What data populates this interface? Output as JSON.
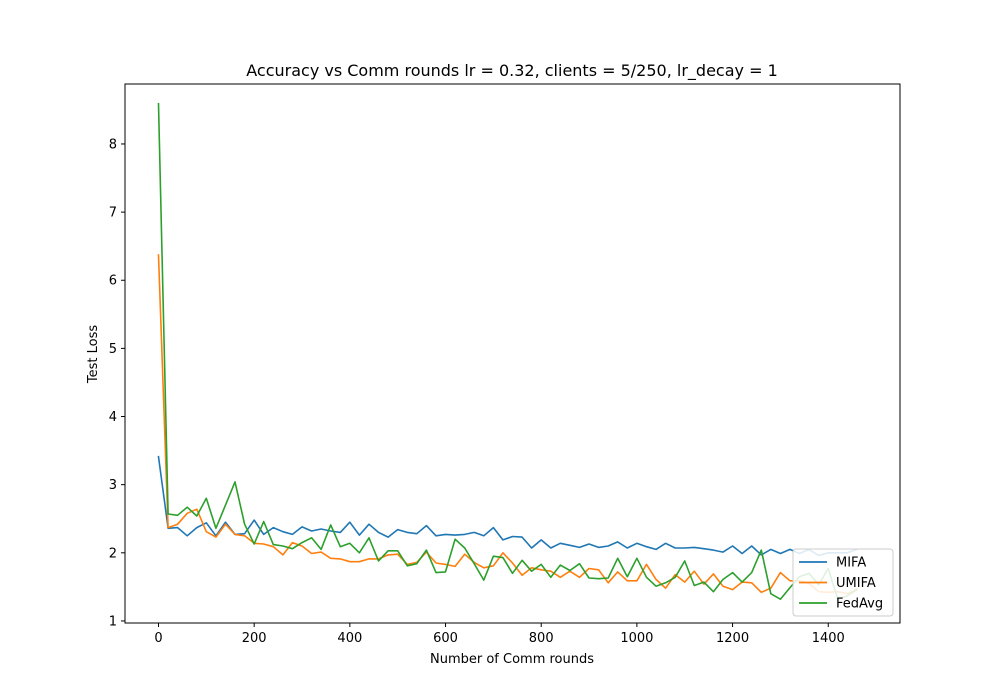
{
  "chart_data": {
    "type": "line",
    "title": "Accuracy vs Comm rounds lr = 0.32, clients = 5/250, lr_decay = 1",
    "xlabel": "Number of Comm rounds",
    "ylabel": "Test Loss",
    "xlim": [
      -70,
      1550
    ],
    "ylim": [
      0.97,
      8.88
    ],
    "xticks": [
      0,
      200,
      400,
      600,
      800,
      1000,
      1200,
      1400
    ],
    "yticks": [
      1,
      2,
      3,
      4,
      5,
      6,
      7,
      8
    ],
    "grid": false,
    "legend_position": "lower right",
    "x": [
      0,
      20,
      40,
      60,
      80,
      100,
      120,
      140,
      160,
      180,
      200,
      220,
      240,
      260,
      280,
      300,
      320,
      340,
      360,
      380,
      400,
      420,
      440,
      460,
      480,
      500,
      520,
      540,
      560,
      580,
      600,
      620,
      640,
      660,
      680,
      700,
      720,
      740,
      760,
      780,
      800,
      820,
      840,
      860,
      880,
      900,
      920,
      940,
      960,
      980,
      1000,
      1020,
      1040,
      1060,
      1080,
      1100,
      1120,
      1140,
      1160,
      1180,
      1200,
      1220,
      1240,
      1260,
      1280,
      1300,
      1320,
      1340,
      1360,
      1380,
      1400,
      1420,
      1440,
      1460
    ],
    "series": [
      {
        "name": "MIFA",
        "color": "#1f77b4",
        "values": [
          3.41,
          2.36,
          2.37,
          2.25,
          2.37,
          2.44,
          2.25,
          2.45,
          2.27,
          2.28,
          2.48,
          2.27,
          2.37,
          2.31,
          2.27,
          2.38,
          2.32,
          2.35,
          2.32,
          2.3,
          2.45,
          2.26,
          2.42,
          2.3,
          2.23,
          2.34,
          2.3,
          2.28,
          2.4,
          2.25,
          2.27,
          2.26,
          2.27,
          2.3,
          2.25,
          2.37,
          2.19,
          2.24,
          2.23,
          2.07,
          2.19,
          2.07,
          2.14,
          2.11,
          2.08,
          2.13,
          2.08,
          2.1,
          2.16,
          2.07,
          2.14,
          2.09,
          2.05,
          2.14,
          2.07,
          2.07,
          2.08,
          2.06,
          2.04,
          2.01,
          2.1,
          1.99,
          2.1,
          1.97,
          2.05,
          1.99,
          2.05,
          1.99,
          2.05,
          1.96,
          2.0,
          2.0,
          2.0,
          2.05
        ]
      },
      {
        "name": "UMIFA",
        "color": "#ff7f0e",
        "values": [
          6.37,
          2.37,
          2.42,
          2.58,
          2.64,
          2.31,
          2.23,
          2.42,
          2.27,
          2.25,
          2.14,
          2.13,
          2.09,
          1.97,
          2.15,
          2.1,
          1.99,
          2.01,
          1.92,
          1.91,
          1.87,
          1.87,
          1.91,
          1.91,
          1.97,
          1.98,
          1.83,
          1.86,
          2.01,
          1.85,
          1.83,
          1.8,
          1.98,
          1.86,
          1.78,
          1.81,
          2.0,
          1.85,
          1.67,
          1.78,
          1.75,
          1.73,
          1.64,
          1.73,
          1.64,
          1.77,
          1.75,
          1.56,
          1.72,
          1.59,
          1.59,
          1.83,
          1.61,
          1.48,
          1.68,
          1.57,
          1.73,
          1.54,
          1.69,
          1.51,
          1.46,
          1.57,
          1.56,
          1.42,
          1.48,
          1.71,
          1.59,
          1.59,
          1.55,
          1.43,
          1.42,
          1.43,
          1.4,
          1.47
        ]
      },
      {
        "name": "FedAvg",
        "color": "#2ca02c",
        "values": [
          8.59,
          2.57,
          2.55,
          2.67,
          2.54,
          2.8,
          2.36,
          2.7,
          3.04,
          2.42,
          2.13,
          2.46,
          2.12,
          2.1,
          2.06,
          2.15,
          2.22,
          2.05,
          2.41,
          2.09,
          2.14,
          2.0,
          2.22,
          1.88,
          2.03,
          2.03,
          1.81,
          1.84,
          2.04,
          1.71,
          1.72,
          2.2,
          2.07,
          1.84,
          1.6,
          1.95,
          1.93,
          1.7,
          1.89,
          1.73,
          1.83,
          1.64,
          1.82,
          1.74,
          1.84,
          1.63,
          1.62,
          1.63,
          1.92,
          1.65,
          1.92,
          1.64,
          1.51,
          1.56,
          1.64,
          1.88,
          1.52,
          1.57,
          1.43,
          1.61,
          1.71,
          1.57,
          1.71,
          2.04,
          1.4,
          1.32,
          1.49,
          1.65,
          1.7,
          1.53,
          1.77,
          1.32,
          1.37,
          1.46
        ]
      }
    ]
  }
}
